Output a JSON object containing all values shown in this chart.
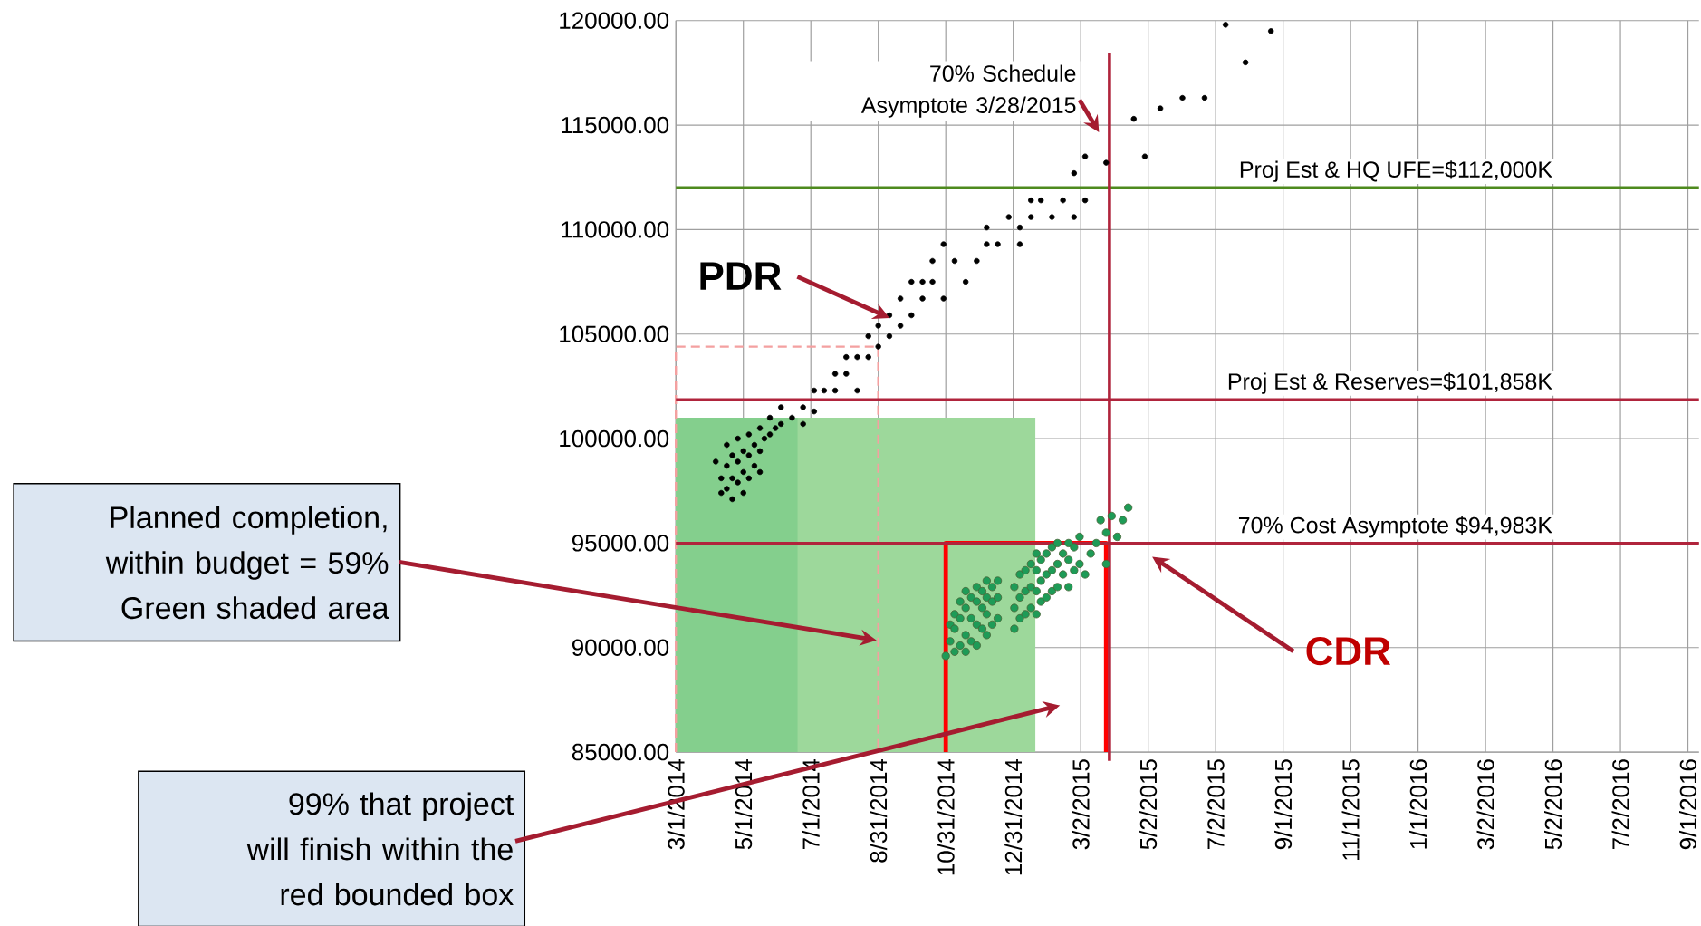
{
  "chart_data": {
    "type": "scatter",
    "xlim": [
      "2014-03-01",
      "2016-09-11"
    ],
    "ylim": [
      85000,
      120000
    ],
    "xticks": [
      {
        "value": "2014-03-01",
        "label": "3/1/2014"
      },
      {
        "value": "2014-05-01",
        "label": "5/1/2014"
      },
      {
        "value": "2014-07-01",
        "label": "7/1/2014"
      },
      {
        "value": "2014-08-31",
        "label": "8/31/2014"
      },
      {
        "value": "2014-10-31",
        "label": "10/31/2014"
      },
      {
        "value": "2014-12-31",
        "label": "12/31/2014"
      },
      {
        "value": "2015-03-02",
        "label": "3/2/2015"
      },
      {
        "value": "2015-05-02",
        "label": "5/2/2015"
      },
      {
        "value": "2015-07-02",
        "label": "7/2/2015"
      },
      {
        "value": "2015-09-01",
        "label": "9/1/2015"
      },
      {
        "value": "2015-11-01",
        "label": "11/1/2015"
      },
      {
        "value": "2016-01-01",
        "label": "1/1/2016"
      },
      {
        "value": "2016-03-02",
        "label": "3/2/2016"
      },
      {
        "value": "2016-05-02",
        "label": "5/2/2016"
      },
      {
        "value": "2016-07-02",
        "label": "7/2/2016"
      },
      {
        "value": "2016-09-01",
        "label": "9/1/2016"
      }
    ],
    "yticks": [
      {
        "value": 85000,
        "label": "85000.00"
      },
      {
        "value": 90000,
        "label": "90000.00"
      },
      {
        "value": 95000,
        "label": "95000.00"
      },
      {
        "value": 100000,
        "label": "100000.00"
      },
      {
        "value": 105000,
        "label": "105000.00"
      },
      {
        "value": 110000,
        "label": "110000.00"
      },
      {
        "value": 115000,
        "label": "115000.00"
      },
      {
        "value": 120000,
        "label": "120000.00"
      }
    ],
    "grid": true,
    "marker": "circle",
    "series": [
      {
        "type": "area",
        "marker": "none",
        "color": "#9dd89b",
        "x": [
          "2014-03-01",
          "2015-01-20"
        ],
        "values": [
          101000,
          101000
        ]
      },
      {
        "type": "area",
        "marker": "none",
        "color": "#84cf8d",
        "x": [
          "2014-03-01",
          "2014-06-19"
        ],
        "values": [
          101000,
          101000
        ]
      },
      {
        "type": "line",
        "marker": "none",
        "color": "#f4a0a0",
        "line_style": "dashed",
        "x": [
          "2014-03-01",
          "2014-03-01",
          "2014-08-31",
          "2014-08-31"
        ],
        "values": [
          85000,
          104400,
          104400,
          85000
        ]
      },
      {
        "type": "line",
        "marker": "none",
        "color": "#ff0000",
        "x": [
          "2014-10-31",
          "2014-10-31",
          "2015-03-25",
          "2015-03-25"
        ],
        "values": [
          85000,
          95000,
          95000,
          85000
        ]
      },
      {
        "color": "#000000",
        "x": [
          "2014-04-06",
          "2014-04-11",
          "2014-04-11",
          "2014-04-16",
          "2014-04-16",
          "2014-04-16",
          "2014-04-21",
          "2014-04-21",
          "2014-04-21",
          "2014-04-26",
          "2014-04-26",
          "2014-04-26",
          "2014-05-01",
          "2014-05-01",
          "2014-05-01",
          "2014-05-06",
          "2014-05-06",
          "2014-05-06",
          "2014-05-11",
          "2014-05-11",
          "2014-05-16",
          "2014-05-16",
          "2014-05-16",
          "2014-05-20",
          "2014-05-25",
          "2014-05-25",
          "2014-05-30",
          "2014-06-04",
          "2014-06-04",
          "2014-06-14",
          "2014-06-24",
          "2014-06-24",
          "2014-07-04",
          "2014-07-04",
          "2014-07-13",
          "2014-07-23",
          "2014-07-23",
          "2014-08-02",
          "2014-08-02",
          "2014-08-12",
          "2014-08-12",
          "2014-08-22",
          "2014-08-22",
          "2014-08-31",
          "2014-08-31",
          "2014-09-10",
          "2014-09-10",
          "2014-09-20",
          "2014-09-20",
          "2014-09-30",
          "2014-09-30",
          "2014-10-10",
          "2014-10-10",
          "2014-10-19",
          "2014-10-19",
          "2014-10-29",
          "2014-10-29",
          "2014-11-08",
          "2014-11-18",
          "2014-11-28",
          "2014-12-07",
          "2014-12-07",
          "2014-12-17",
          "2014-12-27",
          "2015-01-06",
          "2015-01-06",
          "2015-01-16",
          "2015-01-16",
          "2015-01-25",
          "2015-02-04",
          "2015-02-14",
          "2015-02-24",
          "2015-02-24",
          "2015-03-06",
          "2015-03-06",
          "2015-03-25",
          "2015-04-19",
          "2015-04-29",
          "2015-05-13",
          "2015-06-02",
          "2015-06-22",
          "2015-07-11",
          "2015-07-29",
          "2015-08-21"
        ],
        "values": [
          98900,
          98100,
          97400,
          99700,
          98700,
          97600,
          99200,
          98100,
          97100,
          100000,
          98900,
          97900,
          99400,
          98400,
          97400,
          100200,
          99200,
          98100,
          99700,
          98700,
          100500,
          99400,
          98400,
          100000,
          101000,
          100200,
          100500,
          101500,
          100700,
          101000,
          101500,
          100700,
          102300,
          101300,
          102300,
          103100,
          102300,
          103900,
          103100,
          103900,
          102300,
          104900,
          103900,
          105400,
          104400,
          105900,
          104900,
          106700,
          105400,
          107500,
          105900,
          107500,
          106700,
          108500,
          107500,
          109300,
          106700,
          108500,
          107500,
          108500,
          110100,
          109300,
          109300,
          110600,
          110100,
          109300,
          111400,
          110600,
          111400,
          110600,
          111400,
          112700,
          110600,
          113500,
          111400,
          113200,
          115300,
          113500,
          115800,
          116300,
          116300,
          119800,
          118000,
          119500
        ]
      },
      {
        "color": "#1e9b57",
        "x": [
          "2014-10-31",
          "2014-11-04",
          "2014-11-04",
          "2014-11-08",
          "2014-11-08",
          "2014-11-08",
          "2014-11-13",
          "2014-11-13",
          "2014-11-13",
          "2014-11-18",
          "2014-11-18",
          "2014-11-18",
          "2014-11-18",
          "2014-11-23",
          "2014-11-23",
          "2014-11-23",
          "2014-11-28",
          "2014-11-28",
          "2014-11-28",
          "2014-11-28",
          "2014-12-03",
          "2014-12-03",
          "2014-12-03",
          "2014-12-07",
          "2014-12-07",
          "2014-12-07",
          "2014-12-07",
          "2014-12-12",
          "2014-12-12",
          "2014-12-12",
          "2014-12-17",
          "2014-12-17",
          "2014-12-17",
          "2015-01-01",
          "2015-01-01",
          "2015-01-01",
          "2015-01-06",
          "2015-01-06",
          "2015-01-06",
          "2015-01-11",
          "2015-01-11",
          "2015-01-11",
          "2015-01-16",
          "2015-01-16",
          "2015-01-16",
          "2015-01-21",
          "2015-01-21",
          "2015-01-21",
          "2015-01-21",
          "2015-01-25",
          "2015-01-25",
          "2015-01-25",
          "2015-01-30",
          "2015-01-30",
          "2015-01-30",
          "2015-02-04",
          "2015-02-04",
          "2015-02-04",
          "2015-02-09",
          "2015-02-09",
          "2015-02-09",
          "2015-02-14",
          "2015-02-14",
          "2015-02-19",
          "2015-02-19",
          "2015-02-19",
          "2015-02-24",
          "2015-02-24",
          "2015-03-01",
          "2015-03-01",
          "2015-03-06",
          "2015-03-11",
          "2015-03-16",
          "2015-03-20",
          "2015-03-25",
          "2015-03-25",
          "2015-03-30",
          "2015-04-04",
          "2015-04-09",
          "2015-04-14"
        ],
        "values": [
          89600,
          90300,
          91100,
          89800,
          90900,
          91600,
          90100,
          91400,
          92200,
          89800,
          90600,
          91900,
          92700,
          90300,
          91400,
          92400,
          90100,
          91100,
          92200,
          92900,
          90900,
          91900,
          92700,
          90600,
          91600,
          92400,
          93200,
          91100,
          92200,
          92900,
          91400,
          92400,
          93200,
          90900,
          91900,
          92900,
          91400,
          92400,
          93500,
          91600,
          92700,
          93700,
          91900,
          92900,
          94000,
          91600,
          92700,
          93700,
          94500,
          92200,
          93200,
          94200,
          92400,
          93500,
          94500,
          92700,
          93700,
          94800,
          92900,
          94000,
          95000,
          93500,
          94500,
          92900,
          94200,
          95000,
          93700,
          94800,
          94000,
          95300,
          93500,
          94500,
          95000,
          96100,
          95500,
          94000,
          96300,
          95300,
          96100,
          96700
        ]
      }
    ],
    "ref_lines": [
      {
        "axis": "y",
        "value": 112000,
        "label": "Proj Est & HQ UFE=$112,000K",
        "color": "#4e8a1e"
      },
      {
        "axis": "y",
        "value": 101858,
        "label": "Proj Est & Reserves=$101,858K",
        "color": "#b0243c"
      },
      {
        "axis": "y",
        "value": 94983,
        "label": "70% Cost Asymptote   $94,983K",
        "color": "#b0243c"
      },
      {
        "axis": "x",
        "value": "2015-03-28",
        "label": "70% Schedule Asymptote 3/28/2015",
        "color": "#b0243c"
      }
    ],
    "annotations": [
      "PDR",
      "CDR",
      "Planned completion, within budget = 59% Green shaded area",
      "99% that project will finish within the red bounded box"
    ]
  }
}
